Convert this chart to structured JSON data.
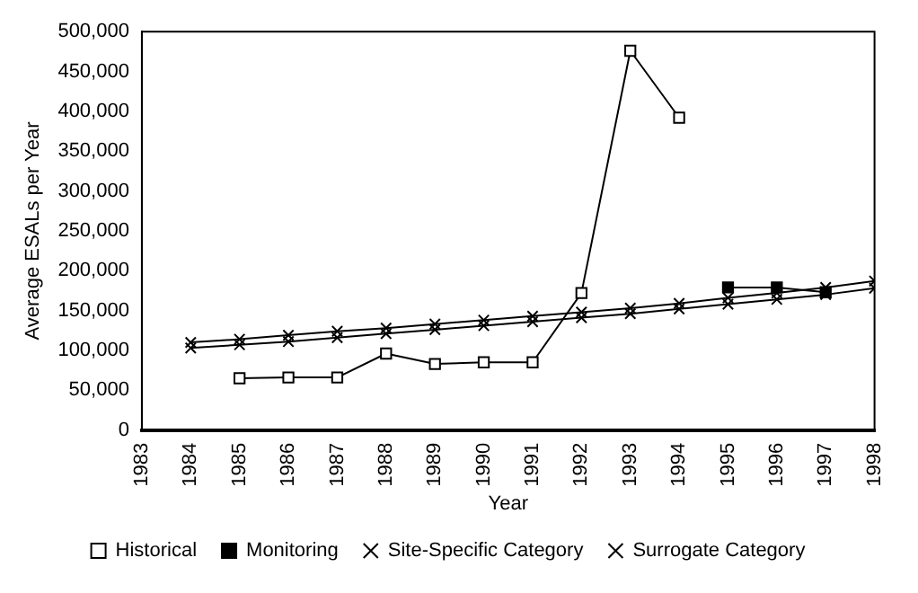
{
  "chart_data": {
    "type": "line",
    "xlabel": "Year",
    "ylabel": "Average ESALs per Year",
    "xlim": [
      1983,
      1998
    ],
    "xticks": [
      1983,
      1984,
      1985,
      1986,
      1987,
      1988,
      1989,
      1990,
      1991,
      1992,
      1993,
      1994,
      1995,
      1996,
      1997,
      1998
    ],
    "ylim": [
      0,
      500000
    ],
    "yticks": [
      0,
      {
        "value": 50000,
        "label": "50,000"
      },
      {
        "value": 100000,
        "label": "100,000"
      },
      {
        "value": 150000,
        "label": "150,000"
      },
      {
        "value": 200000,
        "label": "200,000"
      },
      {
        "value": 250000,
        "label": "250,000"
      },
      {
        "value": 300000,
        "label": "300,000"
      },
      {
        "value": 350000,
        "label": "350,000"
      },
      {
        "value": 400000,
        "label": "400,000"
      },
      {
        "value": 450000,
        "label": "450,000"
      },
      {
        "value": 500000,
        "label": "500,000"
      }
    ],
    "grid": false,
    "legend": "bottom",
    "series": [
      {
        "name": "Historical",
        "color": "#000000",
        "marker": "square",
        "x": [
          1985,
          1986,
          1987,
          1988,
          1989,
          1990,
          1991,
          1992,
          1993,
          1994
        ],
        "values": [
          65000,
          66000,
          66000,
          96000,
          83000,
          85000,
          85000,
          172000,
          476000,
          392000
        ]
      },
      {
        "name": "Monitoring",
        "color": "#000000",
        "marker": "square",
        "x": [
          1995,
          1996,
          1997
        ],
        "values": [
          179000,
          179000,
          173000
        ]
      },
      {
        "name": "Site-Specific Category",
        "color": "#000000",
        "marker": "cross",
        "x": [
          1984,
          1985,
          1986,
          1987,
          1988,
          1989,
          1990,
          1991,
          1992,
          1993,
          1994,
          1995,
          1996,
          1997,
          1998
        ],
        "values": [
          110000,
          114000,
          119000,
          124000,
          128000,
          133000,
          138000,
          143000,
          148000,
          153000,
          159000,
          166000,
          172000,
          179000,
          187000
        ]
      },
      {
        "name": "Surrogate Category",
        "color": "#000000",
        "marker": "cross",
        "x": [
          1984,
          1985,
          1986,
          1987,
          1988,
          1989,
          1990,
          1991,
          1992,
          1993,
          1994,
          1995,
          1996,
          1997,
          1998
        ],
        "values": [
          103000,
          107000,
          111000,
          116000,
          121000,
          126000,
          131000,
          136000,
          141000,
          146000,
          152000,
          158000,
          164000,
          170000,
          178000
        ]
      }
    ]
  }
}
